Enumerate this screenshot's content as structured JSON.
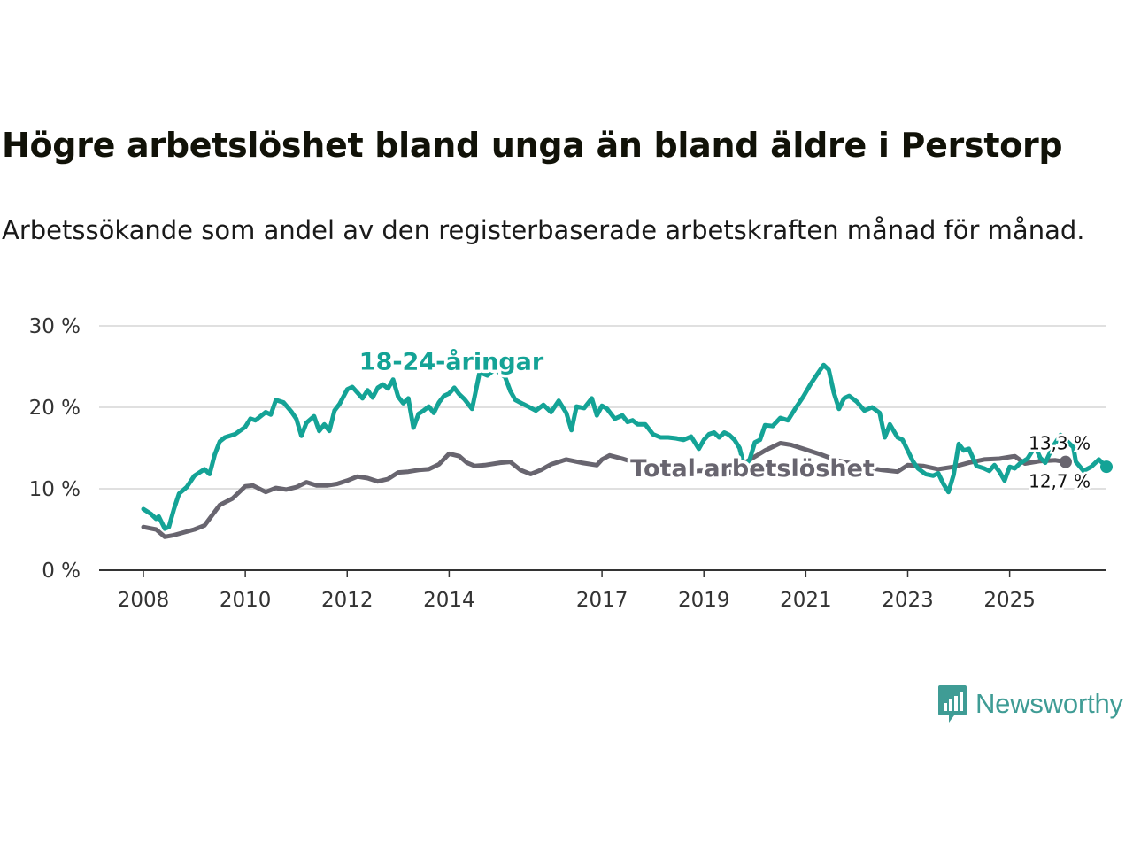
{
  "header": {
    "title": "Högre arbetslöshet bland unga än bland äldre i Perstorp",
    "subtitle": "Arbetssökande som andel av den registerbaserade arbetskraften månad för månad."
  },
  "brand": {
    "name": "Newsworthy",
    "color": "#3f9c95"
  },
  "chart_data": {
    "type": "line",
    "title": "Högre arbetslöshet bland unga än bland äldre i Perstorp",
    "subtitle": "Arbetssökande som andel av den registerbaserade arbetskraften månad för månad.",
    "xlabel": "",
    "ylabel": "",
    "ylim": [
      0,
      30
    ],
    "xlim": [
      2007.2,
      2026.9
    ],
    "yticks": [
      0,
      10,
      20,
      30
    ],
    "ytick_labels": [
      "0 %",
      "10 %",
      "20 %",
      "30 %"
    ],
    "xticks": [
      2008,
      2010,
      2012,
      2014,
      2017,
      2019,
      2021,
      2023,
      2025
    ],
    "xtick_labels": [
      "2008",
      "2010",
      "2012",
      "2014",
      "2017",
      "2019",
      "2021",
      "2023",
      "2025"
    ],
    "grid": "horizontal",
    "series": [
      {
        "name": "Total arbetslöshet",
        "label": "Total arbetslöshet",
        "color": "#68656f",
        "end_label": "13,3 %",
        "points": [
          [
            2008.0,
            5.3
          ],
          [
            2008.25,
            5.0
          ],
          [
            2008.42,
            4.1
          ],
          [
            2008.6,
            4.3
          ],
          [
            2009.0,
            5.0
          ],
          [
            2009.2,
            5.5
          ],
          [
            2009.5,
            8.0
          ],
          [
            2009.75,
            8.8
          ],
          [
            2010.0,
            10.3
          ],
          [
            2010.15,
            10.4
          ],
          [
            2010.4,
            9.6
          ],
          [
            2010.6,
            10.1
          ],
          [
            2010.8,
            9.9
          ],
          [
            2011.0,
            10.2
          ],
          [
            2011.2,
            10.8
          ],
          [
            2011.4,
            10.4
          ],
          [
            2011.6,
            10.4
          ],
          [
            2011.8,
            10.6
          ],
          [
            2012.0,
            11.0
          ],
          [
            2012.2,
            11.5
          ],
          [
            2012.4,
            11.3
          ],
          [
            2012.6,
            10.9
          ],
          [
            2012.8,
            11.2
          ],
          [
            2013.0,
            12.0
          ],
          [
            2013.2,
            12.1
          ],
          [
            2013.4,
            12.3
          ],
          [
            2013.6,
            12.4
          ],
          [
            2013.8,
            13.0
          ],
          [
            2014.0,
            14.3
          ],
          [
            2014.2,
            14.0
          ],
          [
            2014.35,
            13.2
          ],
          [
            2014.5,
            12.8
          ],
          [
            2014.7,
            12.9
          ],
          [
            2015.0,
            13.2
          ],
          [
            2015.2,
            13.3
          ],
          [
            2015.4,
            12.3
          ],
          [
            2015.6,
            11.8
          ],
          [
            2015.8,
            12.3
          ],
          [
            2016.0,
            13.0
          ],
          [
            2016.3,
            13.6
          ],
          [
            2016.6,
            13.2
          ],
          [
            2016.9,
            12.9
          ],
          [
            2017.0,
            13.6
          ],
          [
            2017.15,
            14.1
          ],
          [
            2017.4,
            13.7
          ],
          [
            2017.7,
            13.1
          ],
          [
            2018.0,
            12.8
          ],
          [
            2018.3,
            12.5
          ],
          [
            2018.6,
            12.0
          ],
          [
            2018.9,
            12.2
          ],
          [
            2019.2,
            12.2
          ],
          [
            2019.5,
            12.0
          ],
          [
            2019.8,
            13.2
          ],
          [
            2020.2,
            14.7
          ],
          [
            2020.5,
            15.6
          ],
          [
            2020.7,
            15.4
          ],
          [
            2021.0,
            14.8
          ],
          [
            2021.3,
            14.2
          ],
          [
            2021.6,
            13.5
          ],
          [
            2021.9,
            13.1
          ],
          [
            2022.2,
            12.6
          ],
          [
            2022.5,
            12.3
          ],
          [
            2022.8,
            12.1
          ],
          [
            2023.0,
            12.9
          ],
          [
            2023.3,
            12.8
          ],
          [
            2023.6,
            12.4
          ],
          [
            2023.9,
            12.7
          ],
          [
            2024.2,
            13.2
          ],
          [
            2024.5,
            13.6
          ],
          [
            2024.8,
            13.7
          ],
          [
            2025.1,
            14.0
          ],
          [
            2025.3,
            13.1
          ],
          [
            2025.6,
            13.4
          ],
          [
            2025.9,
            13.5
          ],
          [
            2026.1,
            13.3
          ]
        ]
      },
      {
        "name": "18-24-åringar",
        "label": "18-24-åringar",
        "color": "#14a396",
        "end_label": "12,7 %",
        "points": [
          [
            2008.0,
            7.5
          ],
          [
            2008.15,
            6.9
          ],
          [
            2008.25,
            6.3
          ],
          [
            2008.3,
            6.6
          ],
          [
            2008.42,
            5.1
          ],
          [
            2008.5,
            5.3
          ],
          [
            2008.6,
            7.5
          ],
          [
            2008.7,
            9.4
          ],
          [
            2008.85,
            10.2
          ],
          [
            2009.0,
            11.6
          ],
          [
            2009.2,
            12.4
          ],
          [
            2009.3,
            11.8
          ],
          [
            2009.4,
            14.2
          ],
          [
            2009.5,
            15.8
          ],
          [
            2009.6,
            16.3
          ],
          [
            2009.8,
            16.7
          ],
          [
            2010.0,
            17.6
          ],
          [
            2010.1,
            18.6
          ],
          [
            2010.2,
            18.4
          ],
          [
            2010.4,
            19.4
          ],
          [
            2010.5,
            19.1
          ],
          [
            2010.6,
            20.9
          ],
          [
            2010.75,
            20.6
          ],
          [
            2010.9,
            19.5
          ],
          [
            2011.0,
            18.6
          ],
          [
            2011.1,
            16.5
          ],
          [
            2011.2,
            18.1
          ],
          [
            2011.35,
            18.9
          ],
          [
            2011.45,
            17.1
          ],
          [
            2011.55,
            17.9
          ],
          [
            2011.65,
            17.1
          ],
          [
            2011.75,
            19.6
          ],
          [
            2011.85,
            20.4
          ],
          [
            2012.0,
            22.2
          ],
          [
            2012.1,
            22.5
          ],
          [
            2012.2,
            21.8
          ],
          [
            2012.3,
            21.1
          ],
          [
            2012.4,
            22.1
          ],
          [
            2012.5,
            21.2
          ],
          [
            2012.6,
            22.4
          ],
          [
            2012.7,
            22.8
          ],
          [
            2012.8,
            22.3
          ],
          [
            2012.9,
            23.4
          ],
          [
            2013.0,
            21.3
          ],
          [
            2013.1,
            20.5
          ],
          [
            2013.2,
            21.1
          ],
          [
            2013.3,
            17.5
          ],
          [
            2013.4,
            19.2
          ],
          [
            2013.5,
            19.6
          ],
          [
            2013.6,
            20.1
          ],
          [
            2013.7,
            19.3
          ],
          [
            2013.8,
            20.6
          ],
          [
            2013.9,
            21.4
          ],
          [
            2014.0,
            21.7
          ],
          [
            2014.1,
            22.4
          ],
          [
            2014.2,
            21.6
          ],
          [
            2014.3,
            21.0
          ],
          [
            2014.45,
            19.8
          ],
          [
            2014.6,
            24.3
          ],
          [
            2014.75,
            23.9
          ],
          [
            2014.9,
            24.7
          ],
          [
            2015.1,
            23.7
          ],
          [
            2015.2,
            22.0
          ],
          [
            2015.3,
            20.9
          ],
          [
            2015.45,
            20.4
          ],
          [
            2015.55,
            20.1
          ],
          [
            2015.7,
            19.6
          ],
          [
            2015.85,
            20.3
          ],
          [
            2016.0,
            19.4
          ],
          [
            2016.15,
            20.8
          ],
          [
            2016.3,
            19.3
          ],
          [
            2016.4,
            17.2
          ],
          [
            2016.5,
            20.1
          ],
          [
            2016.65,
            19.9
          ],
          [
            2016.8,
            21.1
          ],
          [
            2016.9,
            19.0
          ],
          [
            2017.0,
            20.2
          ],
          [
            2017.1,
            19.8
          ],
          [
            2017.25,
            18.6
          ],
          [
            2017.4,
            19.0
          ],
          [
            2017.5,
            18.2
          ],
          [
            2017.6,
            18.4
          ],
          [
            2017.7,
            17.9
          ],
          [
            2017.85,
            17.9
          ],
          [
            2018.0,
            16.7
          ],
          [
            2018.15,
            16.3
          ],
          [
            2018.3,
            16.3
          ],
          [
            2018.45,
            16.2
          ],
          [
            2018.6,
            16.0
          ],
          [
            2018.75,
            16.4
          ],
          [
            2018.9,
            14.9
          ],
          [
            2019.0,
            16.0
          ],
          [
            2019.1,
            16.7
          ],
          [
            2019.2,
            16.9
          ],
          [
            2019.3,
            16.3
          ],
          [
            2019.4,
            16.9
          ],
          [
            2019.5,
            16.6
          ],
          [
            2019.6,
            16.0
          ],
          [
            2019.7,
            15.0
          ],
          [
            2019.8,
            12.5
          ],
          [
            2019.9,
            13.6
          ],
          [
            2020.0,
            15.7
          ],
          [
            2020.1,
            16.0
          ],
          [
            2020.2,
            17.8
          ],
          [
            2020.35,
            17.7
          ],
          [
            2020.5,
            18.7
          ],
          [
            2020.65,
            18.4
          ],
          [
            2020.8,
            19.9
          ],
          [
            2020.95,
            21.3
          ],
          [
            2021.1,
            22.9
          ],
          [
            2021.25,
            24.3
          ],
          [
            2021.35,
            25.2
          ],
          [
            2021.45,
            24.6
          ],
          [
            2021.55,
            21.8
          ],
          [
            2021.65,
            19.8
          ],
          [
            2021.75,
            21.1
          ],
          [
            2021.85,
            21.4
          ],
          [
            2022.0,
            20.7
          ],
          [
            2022.15,
            19.6
          ],
          [
            2022.3,
            20.0
          ],
          [
            2022.45,
            19.3
          ],
          [
            2022.55,
            16.3
          ],
          [
            2022.65,
            17.9
          ],
          [
            2022.8,
            16.3
          ],
          [
            2022.9,
            16.0
          ],
          [
            2023.0,
            14.7
          ],
          [
            2023.1,
            13.4
          ],
          [
            2023.2,
            12.5
          ],
          [
            2023.35,
            11.8
          ],
          [
            2023.5,
            11.6
          ],
          [
            2023.6,
            11.9
          ],
          [
            2023.7,
            10.6
          ],
          [
            2023.8,
            9.6
          ],
          [
            2023.9,
            11.7
          ],
          [
            2024.0,
            15.5
          ],
          [
            2024.1,
            14.7
          ],
          [
            2024.2,
            14.9
          ],
          [
            2024.35,
            12.8
          ],
          [
            2024.5,
            12.5
          ],
          [
            2024.6,
            12.2
          ],
          [
            2024.7,
            12.9
          ],
          [
            2024.8,
            12.1
          ],
          [
            2024.9,
            11.0
          ],
          [
            2025.0,
            12.7
          ],
          [
            2025.1,
            12.5
          ],
          [
            2025.2,
            13.1
          ],
          [
            2025.35,
            13.7
          ],
          [
            2025.5,
            15.2
          ],
          [
            2025.6,
            13.8
          ],
          [
            2025.7,
            13.2
          ],
          [
            2025.85,
            15.2
          ],
          [
            2026.0,
            16.6
          ],
          [
            2026.1,
            16.0
          ],
          [
            2026.25,
            15.1
          ],
          [
            2026.3,
            13.3
          ],
          [
            2026.45,
            12.2
          ],
          [
            2026.6,
            12.7
          ],
          [
            2026.75,
            13.6
          ],
          [
            2026.9,
            12.7
          ]
        ]
      }
    ]
  }
}
